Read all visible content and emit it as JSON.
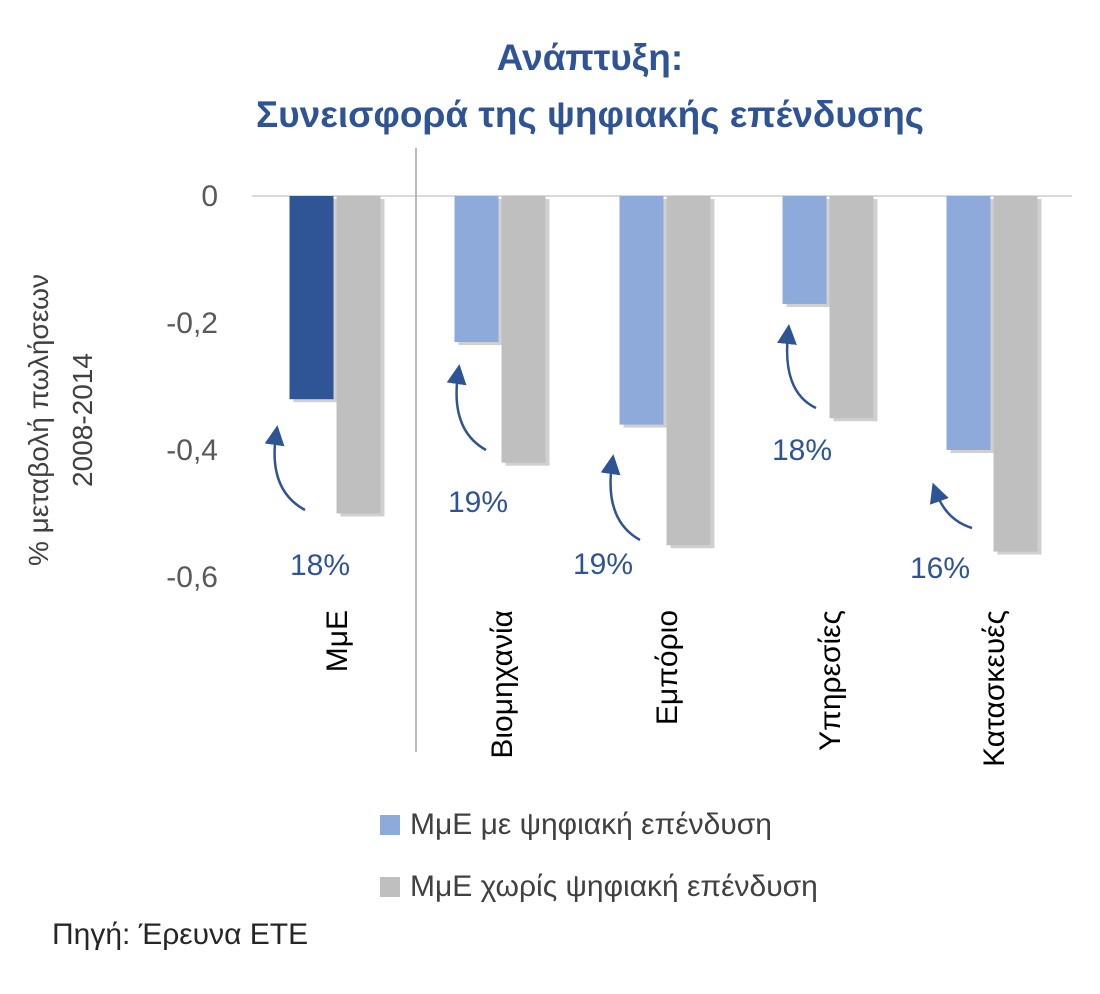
{
  "chart_data": {
    "type": "bar",
    "title": "Ανάπτυξη:",
    "subtitle": "Συνεισφορά της ψηφιακής επένδυσης",
    "ylabel_line1": "% μεταβολή πωλήσεων",
    "ylabel_line2": "2008-2014",
    "categories": [
      "ΜμΕ",
      "Βιομηχανία",
      "Εμπόριο",
      "Υπηρεσίες",
      "Κατασκευές"
    ],
    "series": [
      {
        "name": "ΜμΕ με ψηφιακή επένδυση",
        "values": [
          -0.32,
          -0.23,
          -0.36,
          -0.17,
          -0.4
        ]
      },
      {
        "name": "ΜμΕ χωρίς ψηφιακή επένδυση",
        "values": [
          -0.5,
          -0.42,
          -0.55,
          -0.35,
          -0.56
        ]
      }
    ],
    "annotations": [
      "18%",
      "19%",
      "19%",
      "18%",
      "16%"
    ],
    "ylim": [
      -0.6,
      0
    ],
    "yticks": [
      "0",
      "-0,2",
      "-0,4",
      "-0,6"
    ],
    "colors": {
      "highlight": "#2f5597",
      "with_investment": "#8eaadb",
      "without_investment": "#bfbfbf",
      "annotation": "#2f5496",
      "title": "#2f5496"
    },
    "legend_position": "bottom",
    "grid": false
  },
  "source": "Πηγή: Έρευνα ΕΤΕ"
}
